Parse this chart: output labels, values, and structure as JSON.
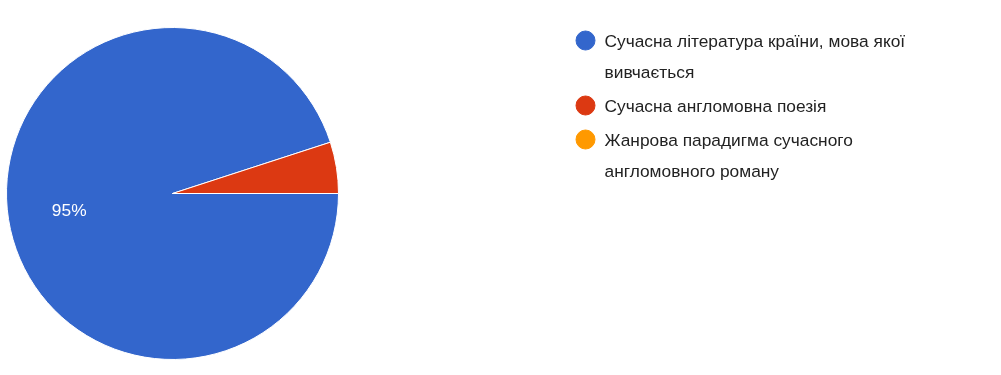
{
  "chart_data": {
    "type": "pie",
    "categories": [
      "Сучасна література країни, мова якої вивчається",
      "Сучасна англомовна поезія",
      "Жанрова парадигма сучасного англомовного роману"
    ],
    "values": [
      95,
      5,
      0
    ],
    "colors": [
      "#3366cc",
      "#dc3912",
      "#ff9900"
    ],
    "value_labels": [
      "95%",
      null,
      null
    ],
    "legend": "right"
  }
}
